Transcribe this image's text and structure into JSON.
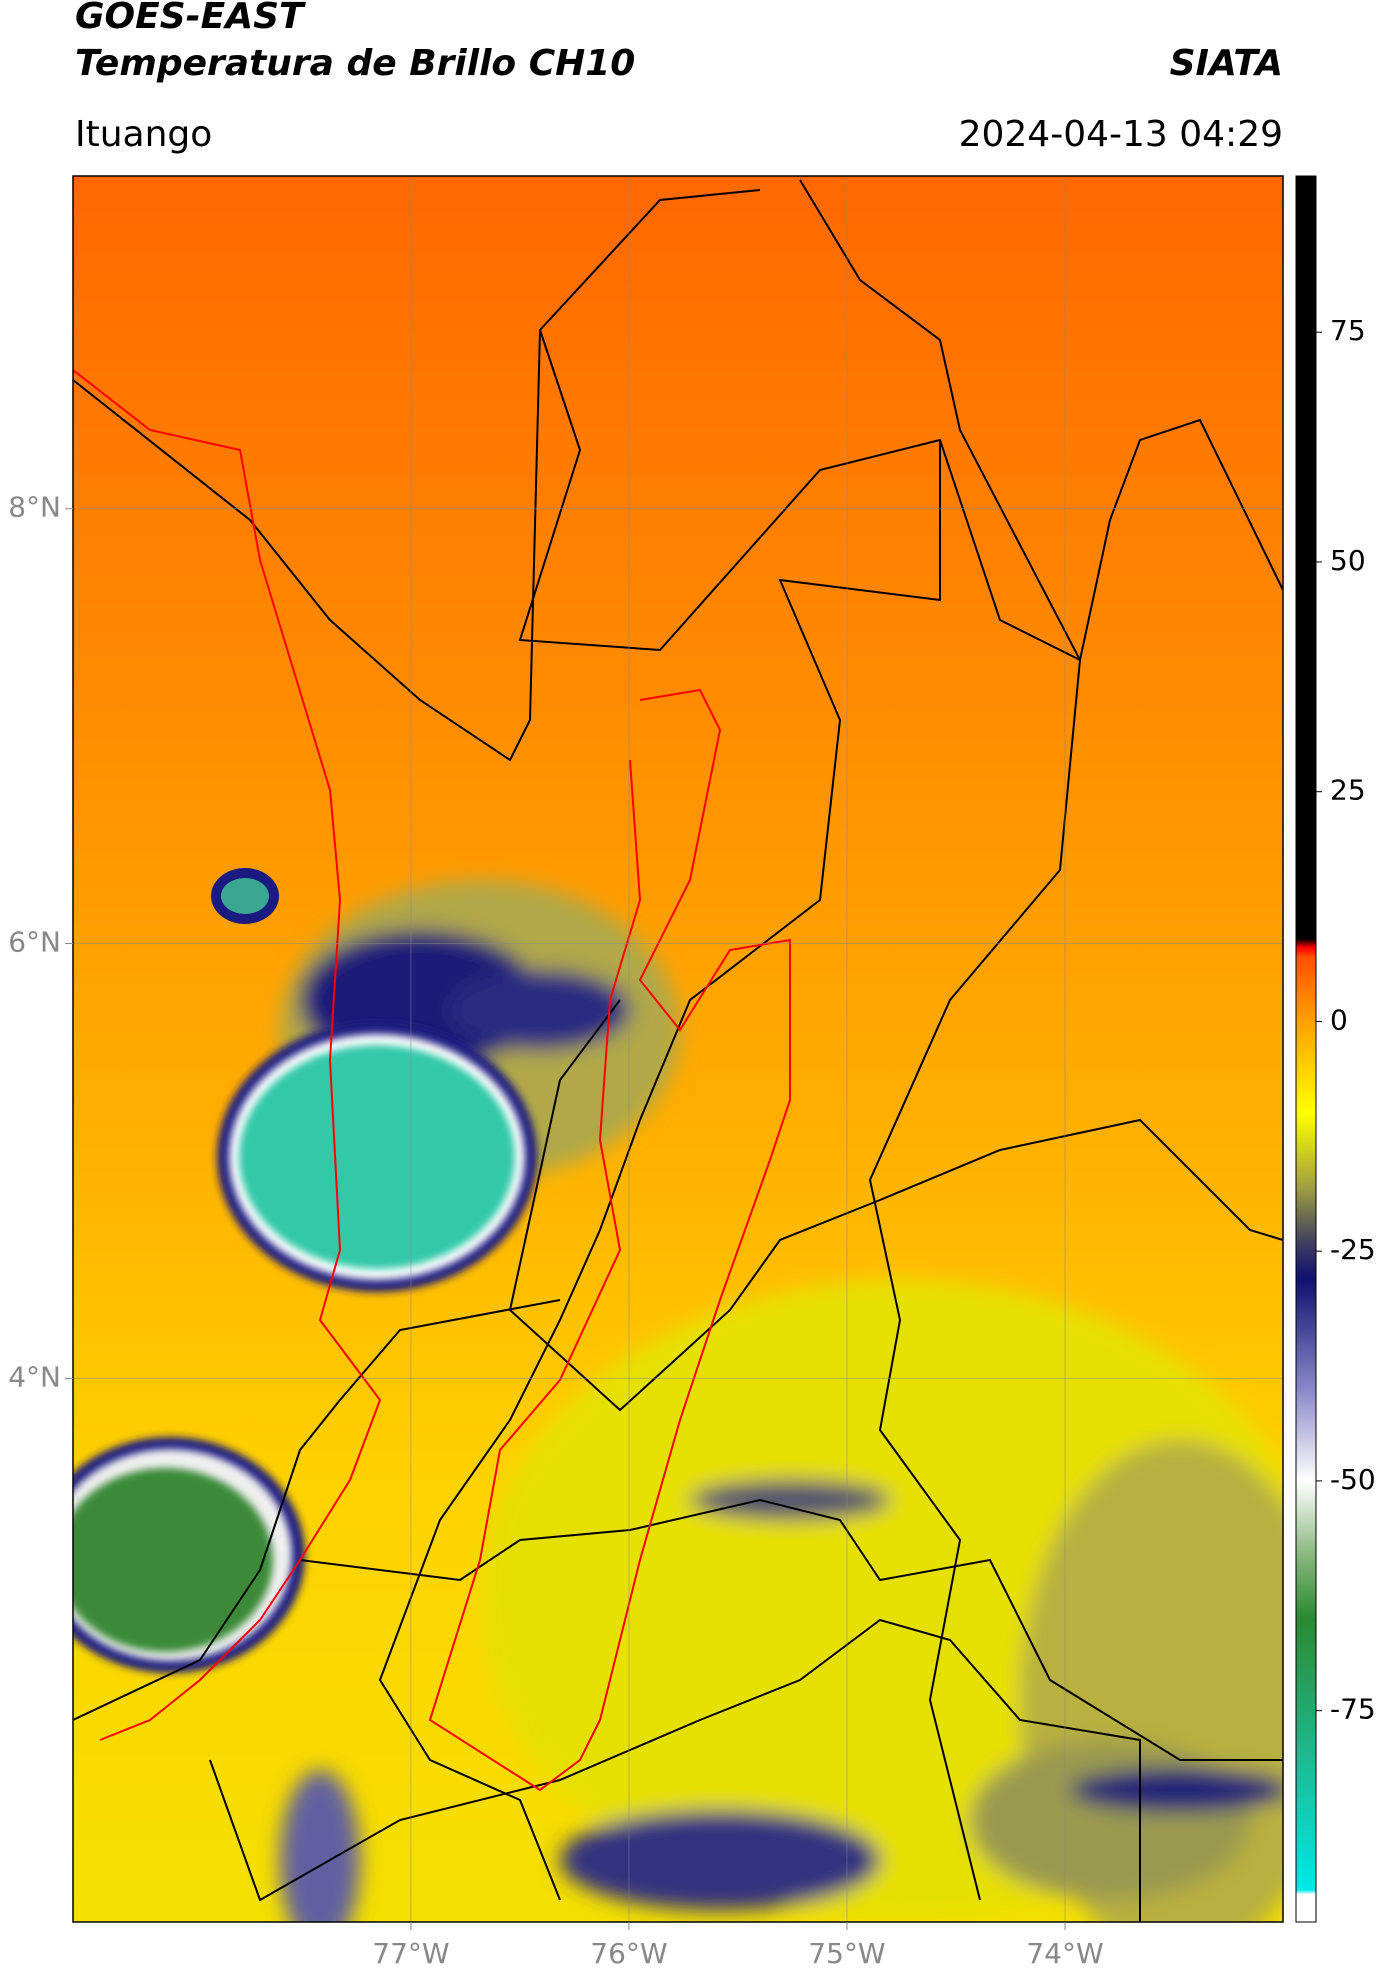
{
  "header": {
    "title": "GOES-EAST",
    "subtitle": "Temperatura de Brillo CH10",
    "source": "SIATA",
    "location": "Ituango",
    "datetime": "2024-04-13 04:29"
  },
  "map": {
    "xlim": [
      -78.55,
      -73.0
    ],
    "ylim": [
      1.5,
      9.53
    ],
    "xticks": [
      {
        "value": -77,
        "label": "77°W"
      },
      {
        "value": -76,
        "label": "76°W"
      },
      {
        "value": -75,
        "label": "75°W"
      },
      {
        "value": -74,
        "label": "74°W"
      }
    ],
    "yticks": [
      {
        "value": 8,
        "label": "8°N"
      },
      {
        "value": 6,
        "label": "6°N"
      },
      {
        "value": 4,
        "label": "4°N"
      }
    ],
    "grid": true
  },
  "colorbar": {
    "lim": [
      -98,
      92
    ],
    "ticks": [
      75,
      50,
      25,
      0,
      -25,
      -50,
      -75
    ],
    "stops": [
      {
        "value": -98,
        "color": "#ffffff"
      },
      {
        "value": -95,
        "color": "#ffffff"
      },
      {
        "value": -94.5,
        "color": "#00e8e8"
      },
      {
        "value": -80,
        "color": "#20b890"
      },
      {
        "value": -65,
        "color": "#2a8a30"
      },
      {
        "value": -58,
        "color": "#8ab880"
      },
      {
        "value": -50,
        "color": "#ffffff"
      },
      {
        "value": -40,
        "color": "#8888c8"
      },
      {
        "value": -28,
        "color": "#101070"
      },
      {
        "value": -24,
        "color": "#404060"
      },
      {
        "value": -18,
        "color": "#a0a040"
      },
      {
        "value": -10,
        "color": "#ffff00"
      },
      {
        "value": 0,
        "color": "#ffa000"
      },
      {
        "value": 7,
        "color": "#ff5000"
      },
      {
        "value": 8,
        "color": "#ff0000"
      },
      {
        "value": 9,
        "color": "#000000"
      },
      {
        "value": 92,
        "color": "#000000"
      }
    ]
  }
}
